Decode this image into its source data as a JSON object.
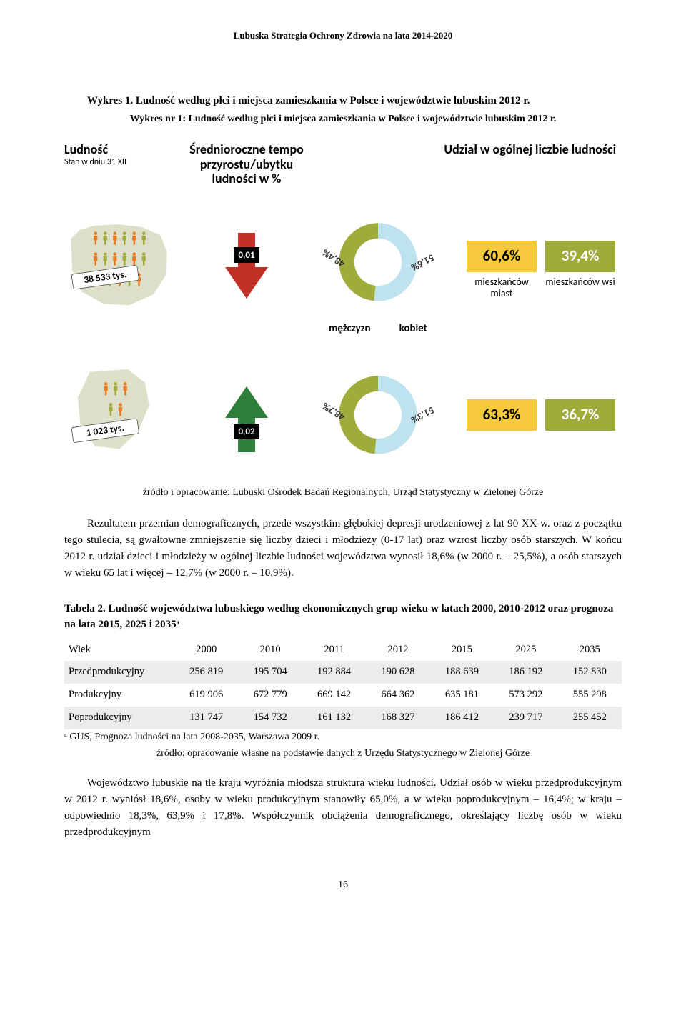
{
  "running_head": "Lubuska Strategia Ochrony Zdrowia na lata 2014-2020",
  "fig_caption": "Wykres 1. Ludność według płci i miejsca zamieszkania w Polsce i województwie lubuskim 2012 r.",
  "fig_subcaption": "Wykres nr 1: Ludność według płci i miejsca zamieszkania w Polsce i województwie lubuskim 2012 r.",
  "colA_head": "Ludność",
  "colA_sub": "Stan w dniu 31 XII",
  "colB_head": "Średnioroczne tempo przyrostu/ubytku ludności w %",
  "colC_head_right": "Udział w ogólnej liczbie ludności",
  "colors": {
    "orange": "#ea7c25",
    "olive": "#9fac3c",
    "green": "#2f7d3a",
    "lightblue": "#bfe2ef",
    "yellow": "#f6c83c",
    "grey": "#dddfc9",
    "black": "#000000",
    "white": "#ffffff",
    "tickets": "#ea7c25"
  },
  "rows": [
    {
      "pop_label": "38 533 tys.",
      "map_type": "poland",
      "people_rows": [
        6,
        6,
        5
      ],
      "arrow_dir": "down",
      "arrow_color": "#c23128",
      "arrow_value": "0,01",
      "donut_male": 48.4,
      "donut_female": 51.6,
      "donut_male_label": "48,4%",
      "donut_female_label": "51,6%",
      "gender_labels": {
        "m": "mężczyzn",
        "f": "kobiet"
      },
      "urban_pct": "60,6%",
      "rural_pct": "39,4%",
      "urban_label": "mieszkańców miast",
      "rural_label": "mieszkańców wsi",
      "show_gender_labels": true,
      "show_ur_labels": true
    },
    {
      "pop_label": "1 023 tys.",
      "map_type": "lubuskie",
      "people_rows": [
        3,
        2
      ],
      "arrow_dir": "up",
      "arrow_color": "#2f7d3a",
      "arrow_value": "0,02",
      "donut_male": 48.7,
      "donut_female": 51.3,
      "donut_male_label": "48,7%",
      "donut_female_label": "51,3%",
      "urban_pct": "63,3%",
      "rural_pct": "36,7%",
      "show_gender_labels": false,
      "show_ur_labels": false
    }
  ],
  "source": "źródło i opracowanie: Lubuski Ośrodek Badań Regionalnych, Urząd Statystyczny w Zielonej Górze",
  "para1": "Rezultatem przemian demograficznych, przede wszystkim głębokiej depresji urodzeniowej z lat 90 XX w. oraz z początku tego stulecia, są gwałtowne zmniejszenie się liczby dzieci i młodzieży (0-17 lat) oraz wzrost liczby osób starszych. W końcu 2012 r. udział dzieci i młodzieży w ogólnej liczbie ludności województwa wynosił 18,6% (w 2000 r. – 25,5%), a osób starszych w wieku 65 lat i więcej – 12,7% (w 2000 r. – 10,9%).",
  "table_caption": "Tabela 2. Ludność województwa lubuskiego według ekonomicznych grup wieku w latach 2000, 2010-2012 oraz prognoza na lata 2015, 2025 i 2035ᵃ",
  "table": {
    "cols": [
      "Wiek",
      "2000",
      "2010",
      "2011",
      "2012",
      "2015",
      "2025",
      "2035"
    ],
    "rows": [
      [
        "Przedprodukcyjny",
        "256 819",
        "195 704",
        "192 884",
        "190 628",
        "188 639",
        "186 192",
        "152 830"
      ],
      [
        "Produkcyjny",
        "619 906",
        "672 779",
        "669 142",
        "664 362",
        "635 181",
        "573 292",
        "555 298"
      ],
      [
        "Poprodukcyjny",
        "131 747",
        "154 732",
        "161 132",
        "168 327",
        "186 412",
        "239 717",
        "255 452"
      ]
    ]
  },
  "table_note": "ᵃ GUS, Prognoza ludności na lata 2008-2035, Warszawa 2009 r.",
  "table_source": "źródło: opracowanie własne na podstawie danych z Urzędu Statystycznego w Zielonej Górze",
  "para2": "Województwo lubuskie na tle kraju wyróżnia młodsza struktura wieku ludności. Udział osób w wieku przedprodukcyjnym w 2012 r. wyniósł 18,6%, osoby w wieku produkcyjnym stanowiły 65,0%, a w wieku poprodukcyjnym – 16,4%; w kraju – odpowiednio 18,3%, 63,9% i 17,8%. Współczynnik obciążenia demograficznego, określający liczbę osób w wieku przedprodukcyjnym",
  "pagenum": "16"
}
